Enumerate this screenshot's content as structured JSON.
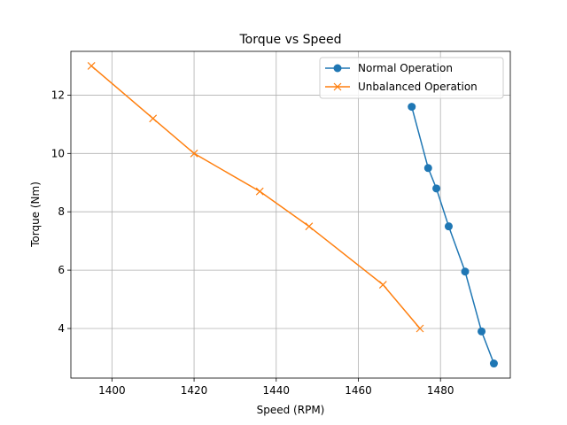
{
  "chart_data": {
    "type": "line",
    "title": "Torque vs Speed",
    "xlabel": "Speed (RPM)",
    "ylabel": "Torque (Nm)",
    "xlim": [
      1390,
      1497
    ],
    "ylim": [
      2.3,
      13.5
    ],
    "xticks": [
      1400,
      1420,
      1440,
      1460,
      1480
    ],
    "yticks": [
      4,
      6,
      8,
      10,
      12
    ],
    "grid": true,
    "legend_position": "top-right",
    "series": [
      {
        "name": "Normal Operation",
        "color": "#1f77b4",
        "marker": "circle",
        "x": [
          1473,
          1477,
          1479,
          1482,
          1486,
          1490,
          1493
        ],
        "y": [
          11.6,
          9.5,
          8.8,
          7.5,
          5.95,
          3.9,
          2.8
        ]
      },
      {
        "name": "Unbalanced Operation",
        "color": "#ff7f0e",
        "marker": "x",
        "x": [
          1395,
          1410,
          1420,
          1436,
          1448,
          1466,
          1475
        ],
        "y": [
          13.0,
          11.2,
          10.0,
          8.7,
          7.5,
          5.5,
          4.0
        ]
      }
    ]
  }
}
